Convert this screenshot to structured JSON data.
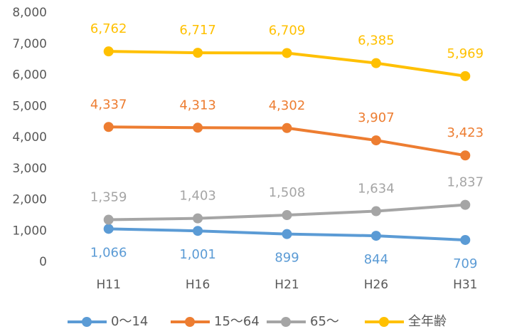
{
  "chart_data": {
    "type": "line",
    "categories": [
      "H11",
      "H16",
      "H21",
      "H26",
      "H31"
    ],
    "series": [
      {
        "name": "0〜14",
        "color": "#5b9bd5",
        "values": [
          1066,
          1001,
          899,
          844,
          709
        ],
        "value_labels": [
          "1,066",
          "1,001",
          "899",
          "844",
          "709"
        ]
      },
      {
        "name": "15〜64",
        "color": "#ed7d31",
        "values": [
          4337,
          4313,
          4302,
          3907,
          3423
        ],
        "value_labels": [
          "4,337",
          "4,313",
          "4,302",
          "3,907",
          "3,423"
        ]
      },
      {
        "name": "65〜",
        "color": "#a5a5a5",
        "values": [
          1359,
          1403,
          1508,
          1634,
          1837
        ],
        "value_labels": [
          "1,359",
          "1,403",
          "1,508",
          "1,634",
          "1,837"
        ]
      },
      {
        "name": "全年齢",
        "color": "#ffc000",
        "values": [
          6762,
          6717,
          6709,
          6385,
          5969
        ],
        "value_labels": [
          "6,762",
          "6,717",
          "6,709",
          "6,385",
          "5,969"
        ]
      }
    ],
    "ylim": [
      0,
      8000
    ],
    "yticks": [
      0,
      {
        "value": 1000,
        "label": "1,000"
      },
      {
        "value": 2000,
        "label": "2,000"
      },
      {
        "value": 3000,
        "label": "3,000"
      },
      {
        "value": 4000,
        "label": "4,000"
      },
      {
        "value": 5000,
        "label": "5,000"
      },
      {
        "value": 6000,
        "label": "6,000"
      },
      {
        "value": 7000,
        "label": "7,000"
      },
      {
        "value": 8000,
        "label": "8,000"
      }
    ],
    "grid": false,
    "legend": "bottom"
  }
}
